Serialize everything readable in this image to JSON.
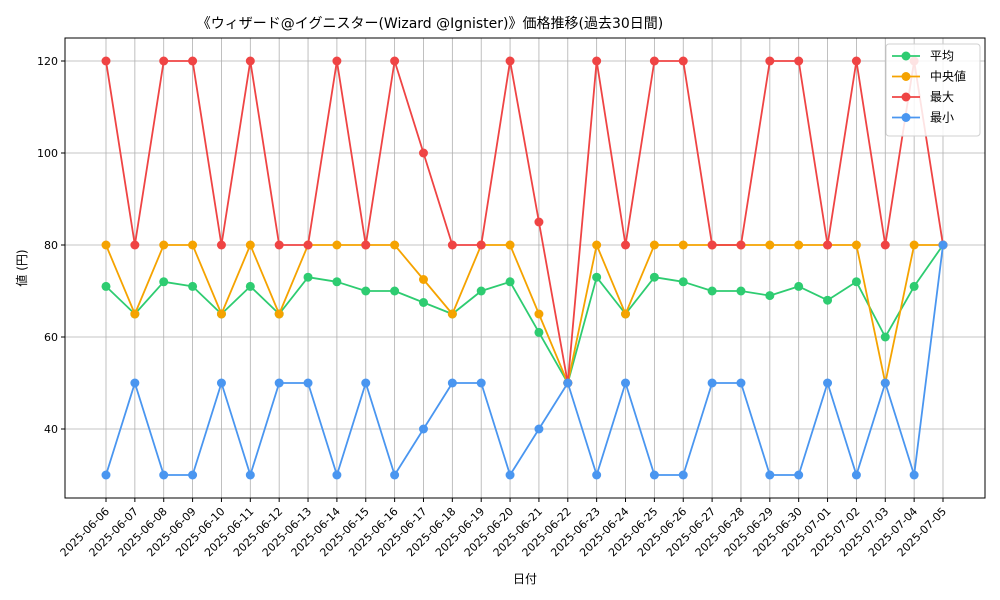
{
  "chart_data": {
    "type": "line",
    "title": "《ウィザード@イグニスター(Wizard @Ignister)》価格推移(過去30日間)",
    "xlabel": "日付",
    "ylabel": "値 (円)",
    "ylim": [
      25,
      125
    ],
    "yticks": [
      40,
      60,
      80,
      100,
      120
    ],
    "grid": true,
    "legend_position": "top-right",
    "categories": [
      "2025-06-06",
      "2025-06-07",
      "2025-06-08",
      "2025-06-09",
      "2025-06-10",
      "2025-06-11",
      "2025-06-12",
      "2025-06-13",
      "2025-06-14",
      "2025-06-15",
      "2025-06-16",
      "2025-06-17",
      "2025-06-18",
      "2025-06-19",
      "2025-06-20",
      "2025-06-21",
      "2025-06-22",
      "2025-06-23",
      "2025-06-24",
      "2025-06-25",
      "2025-06-26",
      "2025-06-27",
      "2025-06-28",
      "2025-06-29",
      "2025-06-30",
      "2025-07-01",
      "2025-07-02",
      "2025-07-03",
      "2025-07-04",
      "2025-07-05"
    ],
    "series": [
      {
        "name": "平均",
        "color": "#2ecc71",
        "values": [
          71,
          65,
          72,
          71,
          65,
          71,
          65,
          73,
          72,
          70,
          70,
          67.5,
          65,
          70,
          72,
          61,
          50,
          73,
          65,
          73,
          72,
          70,
          70,
          69,
          71,
          68,
          72,
          60,
          71,
          80
        ]
      },
      {
        "name": "中央値",
        "color": "#f5a300",
        "values": [
          80,
          65,
          80,
          80,
          65,
          80,
          65,
          80,
          80,
          80,
          80,
          72.5,
          65,
          80,
          80,
          65,
          50,
          80,
          65,
          80,
          80,
          80,
          80,
          80,
          80,
          80,
          80,
          50,
          80,
          80
        ]
      },
      {
        "name": "最大",
        "color": "#ef4444",
        "values": [
          120,
          80,
          120,
          120,
          80,
          120,
          80,
          80,
          120,
          80,
          120,
          100,
          80,
          80,
          120,
          85,
          50,
          120,
          80,
          120,
          120,
          80,
          80,
          120,
          120,
          80,
          120,
          80,
          120,
          80
        ]
      },
      {
        "name": "最小",
        "color": "#4a96f0",
        "values": [
          30,
          50,
          30,
          30,
          50,
          30,
          50,
          50,
          30,
          50,
          30,
          40,
          50,
          50,
          30,
          40,
          50,
          30,
          50,
          30,
          30,
          50,
          50,
          30,
          30,
          50,
          30,
          50,
          30,
          80
        ]
      }
    ]
  }
}
